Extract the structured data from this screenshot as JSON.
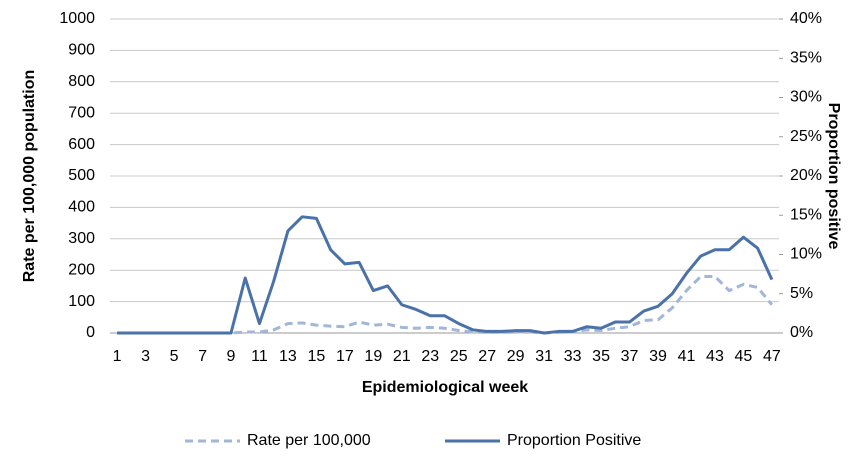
{
  "chart_data": {
    "type": "line",
    "xlabel": "Epidemiological week",
    "ylabel": "Rate per 100,000 population",
    "y2label": "Proportion positive",
    "x": [
      1,
      2,
      3,
      4,
      5,
      6,
      7,
      8,
      9,
      10,
      11,
      12,
      13,
      14,
      15,
      16,
      17,
      18,
      19,
      20,
      21,
      22,
      23,
      24,
      25,
      26,
      27,
      28,
      29,
      30,
      31,
      32,
      33,
      34,
      35,
      36,
      37,
      38,
      39,
      40,
      41,
      42,
      43,
      44,
      45,
      46,
      47
    ],
    "xlim": [
      0.5,
      47.5
    ],
    "xticks": [
      1,
      3,
      5,
      7,
      9,
      11,
      13,
      15,
      17,
      19,
      21,
      23,
      25,
      27,
      29,
      31,
      33,
      35,
      37,
      39,
      41,
      43,
      45,
      47
    ],
    "ylim": [
      0,
      1000
    ],
    "yticks": [
      0,
      100,
      200,
      300,
      400,
      500,
      600,
      700,
      800,
      900,
      1000
    ],
    "y2lim": [
      0,
      40
    ],
    "y2ticks": [
      {
        "value": 0,
        "label": "0%"
      },
      {
        "value": 5,
        "label": "5%"
      },
      {
        "value": 10,
        "label": "10%"
      },
      {
        "value": 15,
        "label": "15%"
      },
      {
        "value": 20,
        "label": "20%"
      },
      {
        "value": 25,
        "label": "25%"
      },
      {
        "value": 30,
        "label": "30%"
      },
      {
        "value": 35,
        "label": "35%"
      },
      {
        "value": 40,
        "label": "40%"
      }
    ],
    "grid": true,
    "legend": "bottom",
    "series": [
      {
        "name": "Rate per 100,000",
        "color": "#a2b6d8",
        "line_style": "dashed",
        "values": [
          0,
          0,
          0,
          0,
          0,
          0,
          0,
          0,
          0,
          3,
          3,
          10,
          30,
          32,
          25,
          22,
          20,
          35,
          25,
          28,
          18,
          15,
          18,
          15,
          8,
          3,
          2,
          2,
          3,
          3,
          0,
          2,
          3,
          10,
          8,
          15,
          20,
          40,
          42,
          80,
          135,
          180,
          180,
          135,
          155,
          145,
          90
        ]
      },
      {
        "name": "Proportion Positive",
        "color": "#4a72a8",
        "line_style": "solid",
        "axis": "y2",
        "values": [
          0,
          0,
          0,
          0,
          0,
          0,
          0,
          0,
          0,
          7,
          1.2,
          6.6,
          13,
          14.8,
          14.6,
          10.6,
          8.8,
          9,
          5.4,
          6,
          3.6,
          3,
          2.2,
          2.2,
          1.2,
          0.4,
          0.2,
          0.2,
          0.3,
          0.3,
          0,
          0.2,
          0.2,
          0.8,
          0.6,
          1.4,
          1.4,
          2.8,
          3.4,
          5,
          7.6,
          9.8,
          10.6,
          10.6,
          12.2,
          10.8,
          6.8
        ]
      }
    ]
  }
}
